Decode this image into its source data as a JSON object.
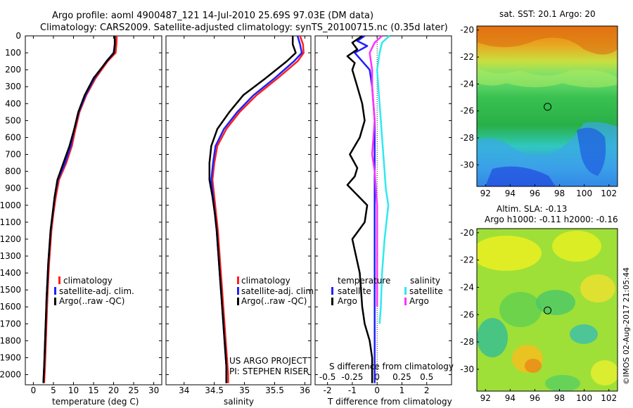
{
  "header": {
    "title": "Argo profile: aoml 4900487_121 14-Jul-2010 25.69S 97.03E (DM data)",
    "subtitle": "Climatology: CARS2009. Satellite-adjusted climatology: synTS_20100715.nc (0.35d later)"
  },
  "colors": {
    "climatology": "#ff2020",
    "satellite_temp": "#2020ff",
    "argo": "#000000",
    "satellite_sal": "#30e8f0",
    "argo_sal": "#ff30ff"
  },
  "credit": {
    "line1": "US ARGO PROJECT",
    "line2": "PI: STEPHEN RISER"
  },
  "timestamp": "©IMOS 02-Aug-2017 21:05:44",
  "chart_data": [
    {
      "type": "line",
      "id": "temperature",
      "xlabel": "temperature (deg C)",
      "ylabel": "",
      "xlim": [
        -2,
        32
      ],
      "ylim": [
        2060,
        0
      ],
      "x_ticks": [
        0,
        5,
        10,
        15,
        20,
        25,
        30
      ],
      "y_ticks": [
        0,
        100,
        200,
        300,
        400,
        500,
        600,
        700,
        800,
        900,
        1000,
        1100,
        1200,
        1300,
        1400,
        1500,
        1600,
        1700,
        1800,
        1900,
        2000
      ],
      "legend": [
        "climatology",
        "satellite-adj. clim.",
        "Argo(..raw -QC)"
      ],
      "series": [
        {
          "name": "climatology",
          "color": "#ff2020",
          "x": [
            20.8,
            20.7,
            20.5,
            18.5,
            15.5,
            13.2,
            11.5,
            10.5,
            9.6,
            8.2,
            6.4,
            5.6,
            5.0,
            4.5,
            4.2,
            3.9,
            3.7,
            3.5,
            3.35,
            3.2,
            3.05,
            2.9,
            2.8,
            2.7
          ],
          "y": [
            0,
            50,
            100,
            150,
            250,
            350,
            450,
            550,
            650,
            750,
            850,
            950,
            1050,
            1150,
            1250,
            1350,
            1450,
            1550,
            1650,
            1750,
            1850,
            1950,
            2000,
            2050
          ]
        },
        {
          "name": "satellite-adj. clim.",
          "color": "#2020ff",
          "x": [
            20.3,
            20.3,
            20.0,
            18.2,
            15.2,
            13.0,
            11.3,
            10.2,
            9.3,
            7.9,
            6.1,
            5.3,
            4.8,
            4.3,
            4.0,
            3.7,
            3.5,
            3.3,
            3.15,
            3.0,
            2.85,
            2.7,
            2.6,
            2.5
          ],
          "y": [
            0,
            50,
            100,
            150,
            250,
            350,
            450,
            550,
            650,
            750,
            850,
            950,
            1050,
            1150,
            1250,
            1350,
            1450,
            1550,
            1650,
            1750,
            1850,
            1950,
            2000,
            2050
          ]
        },
        {
          "name": "Argo(..raw -QC)",
          "color": "#000000",
          "x": [
            20.3,
            20.3,
            20.1,
            18.3,
            15.0,
            12.8,
            11.2,
            10.2,
            9.0,
            7.5,
            6.0,
            5.3,
            4.8,
            4.3,
            4.0,
            3.7,
            3.5,
            3.3,
            3.15,
            3.0,
            2.85,
            2.7,
            2.6,
            2.5
          ],
          "y": [
            0,
            50,
            100,
            150,
            250,
            350,
            450,
            550,
            650,
            750,
            850,
            950,
            1050,
            1150,
            1250,
            1350,
            1450,
            1550,
            1650,
            1750,
            1850,
            1950,
            2000,
            2050
          ]
        }
      ]
    },
    {
      "type": "line",
      "id": "salinity",
      "xlabel": "salinity",
      "ylabel": "",
      "xlim": [
        33.7,
        36.1
      ],
      "ylim": [
        2060,
        0
      ],
      "x_ticks": [
        34,
        34.5,
        35,
        35.5,
        36
      ],
      "legend": [
        "climatology",
        "satellite-adj. clim.",
        "Argo(..raw -QC)"
      ],
      "series": [
        {
          "name": "climatology",
          "color": "#ff2020",
          "x": [
            35.92,
            35.97,
            35.98,
            35.88,
            35.55,
            35.2,
            34.92,
            34.7,
            34.55,
            34.5,
            34.47,
            34.5,
            34.53,
            34.56,
            34.58,
            34.6,
            34.62,
            34.64,
            34.66,
            34.68,
            34.7,
            34.72,
            34.73,
            34.73
          ],
          "y": [
            0,
            50,
            100,
            150,
            250,
            350,
            450,
            550,
            650,
            750,
            850,
            950,
            1050,
            1150,
            1250,
            1350,
            1450,
            1550,
            1650,
            1750,
            1850,
            1950,
            2000,
            2050
          ]
        },
        {
          "name": "satellite-adj. clim.",
          "color": "#2020ff",
          "x": [
            35.88,
            35.92,
            35.95,
            35.82,
            35.5,
            35.15,
            34.88,
            34.66,
            34.52,
            34.48,
            34.45,
            34.48,
            34.51,
            34.54,
            34.56,
            34.58,
            34.6,
            34.62,
            34.64,
            34.66,
            34.68,
            34.7,
            34.7,
            34.7
          ],
          "y": [
            0,
            50,
            100,
            150,
            250,
            350,
            450,
            550,
            650,
            750,
            850,
            950,
            1050,
            1150,
            1250,
            1350,
            1450,
            1550,
            1650,
            1750,
            1850,
            1950,
            2000,
            2050
          ]
        },
        {
          "name": "Argo(..raw -QC)",
          "color": "#000000",
          "x": [
            35.8,
            35.8,
            35.85,
            35.7,
            35.35,
            34.98,
            34.75,
            34.55,
            34.45,
            34.42,
            34.42,
            34.47,
            34.51,
            34.54,
            34.56,
            34.58,
            34.6,
            34.62,
            34.64,
            34.66,
            34.68,
            34.7,
            34.7,
            34.7
          ],
          "y": [
            0,
            50,
            100,
            150,
            250,
            350,
            450,
            550,
            650,
            750,
            850,
            950,
            1050,
            1150,
            1250,
            1350,
            1450,
            1550,
            1650,
            1750,
            1850,
            1950,
            2000,
            2050
          ]
        }
      ]
    },
    {
      "type": "line",
      "id": "difference",
      "xlabel": "T difference from climatology",
      "xlabel2": "S difference from climatology",
      "xlim": [
        -2.5,
        3
      ],
      "ylim": [
        2060,
        0
      ],
      "x_ticks": [
        -2,
        -1,
        0,
        1,
        2
      ],
      "x2_ticks": [
        "-0.5",
        "-0.25",
        "0",
        "0.25",
        "0.5"
      ],
      "x2_positions": [
        -2,
        -1,
        0,
        1,
        2
      ],
      "legend_titles": [
        "temperature",
        "salinity"
      ],
      "legend": [
        "satellite",
        "Argo",
        "satellite",
        "Argo"
      ],
      "series": [
        {
          "name": "satellite",
          "group": "temperature",
          "color": "#2020ff",
          "x": [
            -0.5,
            -0.8,
            -0.4,
            -0.9,
            -0.6,
            -0.3,
            -0.2,
            -0.15,
            -0.1,
            -0.1,
            -0.1,
            -0.1,
            -0.1,
            -0.1,
            -0.1,
            -0.1,
            -0.1,
            -0.1,
            -0.1,
            -0.1,
            -0.1,
            -0.1
          ],
          "y": [
            0,
            30,
            60,
            100,
            150,
            200,
            300,
            400,
            500,
            600,
            700,
            800,
            900,
            1000,
            1200,
            1400,
            1600,
            1700,
            1800,
            1900,
            2000,
            2050
          ]
        },
        {
          "name": "Argo",
          "group": "temperature",
          "color": "#000000",
          "x": [
            -0.6,
            -1.0,
            -0.8,
            -1.2,
            -0.9,
            -1.0,
            -0.8,
            -0.6,
            -0.5,
            -0.7,
            -1.1,
            -0.8,
            -0.9,
            -1.2,
            -0.4,
            -0.5,
            -1.0,
            -0.7,
            -0.6,
            -0.5,
            -0.3,
            -0.2,
            -0.2,
            -0.2
          ],
          "y": [
            0,
            40,
            80,
            120,
            160,
            200,
            300,
            400,
            500,
            600,
            700,
            780,
            830,
            880,
            1000,
            1100,
            1200,
            1400,
            1600,
            1700,
            1800,
            1900,
            2000,
            2050
          ]
        },
        {
          "name": "satellite",
          "group": "salinity",
          "color": "#30e8f0",
          "x": [
            0.5,
            0.2,
            0.1,
            0.0,
            0.05,
            0.1,
            0.15,
            0.2,
            0.25,
            0.3,
            0.35,
            0.45,
            0.3,
            0.2,
            0.15,
            0.1
          ],
          "y": [
            0,
            40,
            100,
            200,
            300,
            400,
            500,
            600,
            700,
            800,
            900,
            1000,
            1200,
            1400,
            1600,
            1700
          ]
        },
        {
          "name": "Argo",
          "group": "salinity",
          "color": "#ff30ff",
          "x": [
            0.2,
            -0.1,
            -0.3,
            -0.2,
            -0.2,
            -0.15,
            -0.1,
            -0.15,
            -0.2,
            -0.1,
            -0.05,
            0.0,
            0.0,
            0.0,
            0.0
          ],
          "y": [
            0,
            40,
            100,
            200,
            300,
            400,
            500,
            600,
            700,
            800,
            900,
            1000,
            1200,
            1400,
            1600
          ]
        }
      ]
    },
    {
      "type": "heatmap",
      "id": "sst_map",
      "title": "sat. SST: 20.1  Argo: 20",
      "xlim": [
        91.3,
        102.7
      ],
      "ylim": [
        -31.6,
        -19.7
      ],
      "x_ticks": [
        92,
        94,
        96,
        98,
        100,
        102
      ],
      "y_ticks": [
        -20,
        -22,
        -24,
        -26,
        -28,
        -30
      ],
      "marker": {
        "lon": 97.03,
        "lat": -25.69
      }
    },
    {
      "type": "heatmap",
      "id": "sla_map",
      "title": "Altim. SLA: -0.13",
      "subtitle": "Argo h1000: -0.11  h2000: -0.16",
      "xlim": [
        91.3,
        102.7
      ],
      "ylim": [
        -31.6,
        -19.7
      ],
      "x_ticks": [
        92,
        94,
        96,
        98,
        100,
        102
      ],
      "y_ticks": [
        -20,
        -22,
        -24,
        -26,
        -28,
        -30
      ],
      "marker": {
        "lon": 97.03,
        "lat": -25.69
      }
    }
  ]
}
